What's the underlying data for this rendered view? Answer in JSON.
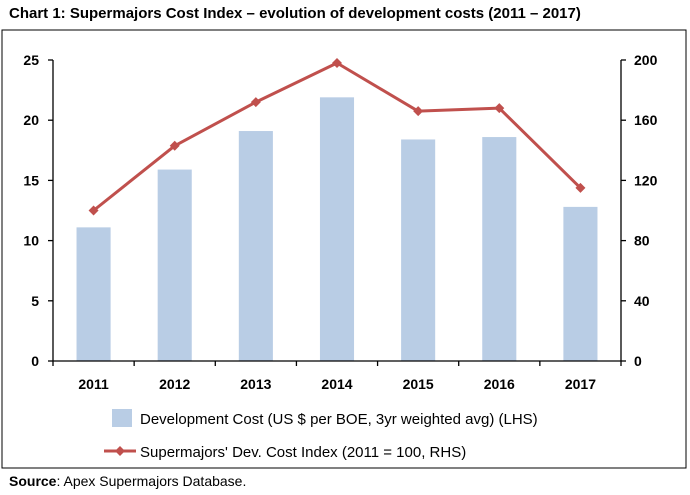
{
  "page": {
    "title": "Chart 1: Supermajors Cost Index – evolution of development costs (2011 – 2017)",
    "source_label": "Source",
    "source_text": ": Apex Supermajors Database."
  },
  "chart_data": {
    "type": "bar",
    "title": "",
    "categories": [
      "2011",
      "2012",
      "2013",
      "2014",
      "2015",
      "2016",
      "2017"
    ],
    "series": [
      {
        "name": "Development Cost (US $ per BOE, 3yr weighted avg) (LHS)",
        "type": "bar",
        "axis": "left",
        "color": "#b9cde5",
        "values": [
          11.1,
          15.9,
          19.1,
          21.9,
          18.4,
          18.6,
          12.8
        ]
      },
      {
        "name": "Supermajors' Dev. Cost Index (2011 = 100, RHS)",
        "type": "line",
        "axis": "right",
        "color": "#c0504d",
        "marker": "diamond",
        "values": [
          100,
          143,
          172,
          198,
          166,
          168,
          115
        ]
      }
    ],
    "y_left": {
      "ylim": [
        0,
        25
      ],
      "ticks": [
        "0",
        "5",
        "10",
        "15",
        "20",
        "25"
      ]
    },
    "y_right": {
      "ylim": [
        0,
        200
      ],
      "ticks": [
        "0",
        "40",
        "80",
        "120",
        "160",
        "200"
      ]
    },
    "grid": false,
    "legend_position": "bottom"
  }
}
